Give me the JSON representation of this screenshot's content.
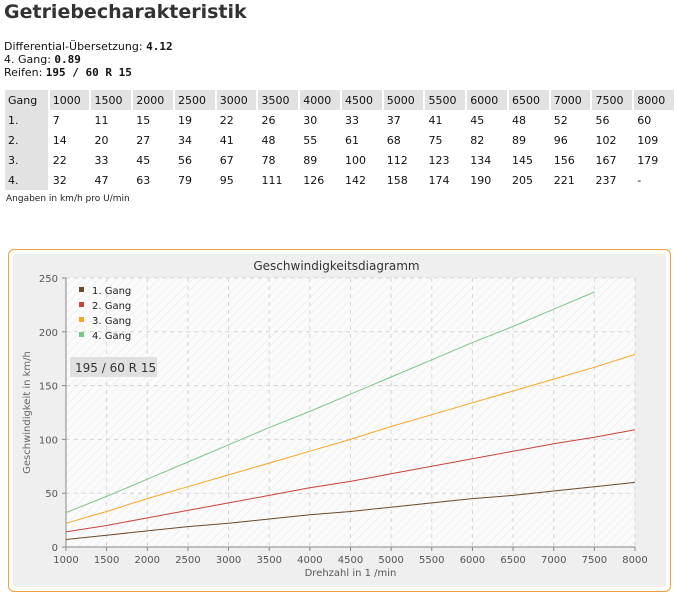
{
  "title": "Getriebecharakteristik",
  "info": {
    "diff_label": "Differential-Übersetzung:",
    "diff_value": "4.12",
    "gear_label": "4. Gang:",
    "gear_value": "0.89",
    "tire_label": "Reifen:",
    "tire_value": "195 / 60 R 15"
  },
  "table": {
    "header_label": "Gang",
    "rpm": [
      "1000",
      "1500",
      "2000",
      "2500",
      "3000",
      "3500",
      "4000",
      "4500",
      "5000",
      "5500",
      "6000",
      "6500",
      "7000",
      "7500",
      "8000"
    ],
    "rows": [
      {
        "label": "1.",
        "values": [
          "7",
          "11",
          "15",
          "19",
          "22",
          "26",
          "30",
          "33",
          "37",
          "41",
          "45",
          "48",
          "52",
          "56",
          "60"
        ]
      },
      {
        "label": "2.",
        "values": [
          "14",
          "20",
          "27",
          "34",
          "41",
          "48",
          "55",
          "61",
          "68",
          "75",
          "82",
          "89",
          "96",
          "102",
          "109"
        ]
      },
      {
        "label": "3.",
        "values": [
          "22",
          "33",
          "45",
          "56",
          "67",
          "78",
          "89",
          "100",
          "112",
          "123",
          "134",
          "145",
          "156",
          "167",
          "179"
        ]
      },
      {
        "label": "4.",
        "values": [
          "32",
          "47",
          "63",
          "79",
          "95",
          "111",
          "126",
          "142",
          "158",
          "174",
          "190",
          "205",
          "221",
          "237",
          "-"
        ]
      }
    ],
    "note": "Angaben in km/h pro U/min"
  },
  "chart_data": {
    "type": "line",
    "title": "Geschwindigkeitsdiagramm",
    "xlabel": "Drehzahl in 1 /min",
    "ylabel": "Geschwindigkeit in km/h",
    "xlim": [
      1000,
      8000
    ],
    "ylim": [
      0,
      250
    ],
    "x_ticks": [
      "1000",
      "1500",
      "2000",
      "2500",
      "3000",
      "3500",
      "4000",
      "4500",
      "5000",
      "5500",
      "6000",
      "6500",
      "7000",
      "7500",
      "8000"
    ],
    "y_ticks": [
      "0",
      "50",
      "100",
      "150",
      "200",
      "250"
    ],
    "annotation": "195 / 60 R 15",
    "legend_position": "top-left",
    "grid": true,
    "series": [
      {
        "name": "1. Gang",
        "color": "#6b4a2e",
        "x": [
          1000,
          1500,
          2000,
          2500,
          3000,
          3500,
          4000,
          4500,
          5000,
          5500,
          6000,
          6500,
          7000,
          7500,
          8000
        ],
        "values": [
          7,
          11,
          15,
          19,
          22,
          26,
          30,
          33,
          37,
          41,
          45,
          48,
          52,
          56,
          60
        ]
      },
      {
        "name": "2. Gang",
        "color": "#c8433a",
        "x": [
          1000,
          1500,
          2000,
          2500,
          3000,
          3500,
          4000,
          4500,
          5000,
          5500,
          6000,
          6500,
          7000,
          7500,
          8000
        ],
        "values": [
          14,
          20,
          27,
          34,
          41,
          48,
          55,
          61,
          68,
          75,
          82,
          89,
          96,
          102,
          109
        ]
      },
      {
        "name": "3. Gang",
        "color": "#f5a623",
        "x": [
          1000,
          1500,
          2000,
          2500,
          3000,
          3500,
          4000,
          4500,
          5000,
          5500,
          6000,
          6500,
          7000,
          7500,
          8000
        ],
        "values": [
          22,
          33,
          45,
          56,
          67,
          78,
          89,
          100,
          112,
          123,
          134,
          145,
          156,
          167,
          179
        ]
      },
      {
        "name": "4. Gang",
        "color": "#7cc48a",
        "x": [
          1000,
          1500,
          2000,
          2500,
          3000,
          3500,
          4000,
          4500,
          5000,
          5500,
          6000,
          6500,
          7000,
          7500
        ],
        "values": [
          32,
          47,
          63,
          79,
          95,
          111,
          126,
          142,
          158,
          174,
          190,
          205,
          221,
          237
        ]
      }
    ]
  }
}
